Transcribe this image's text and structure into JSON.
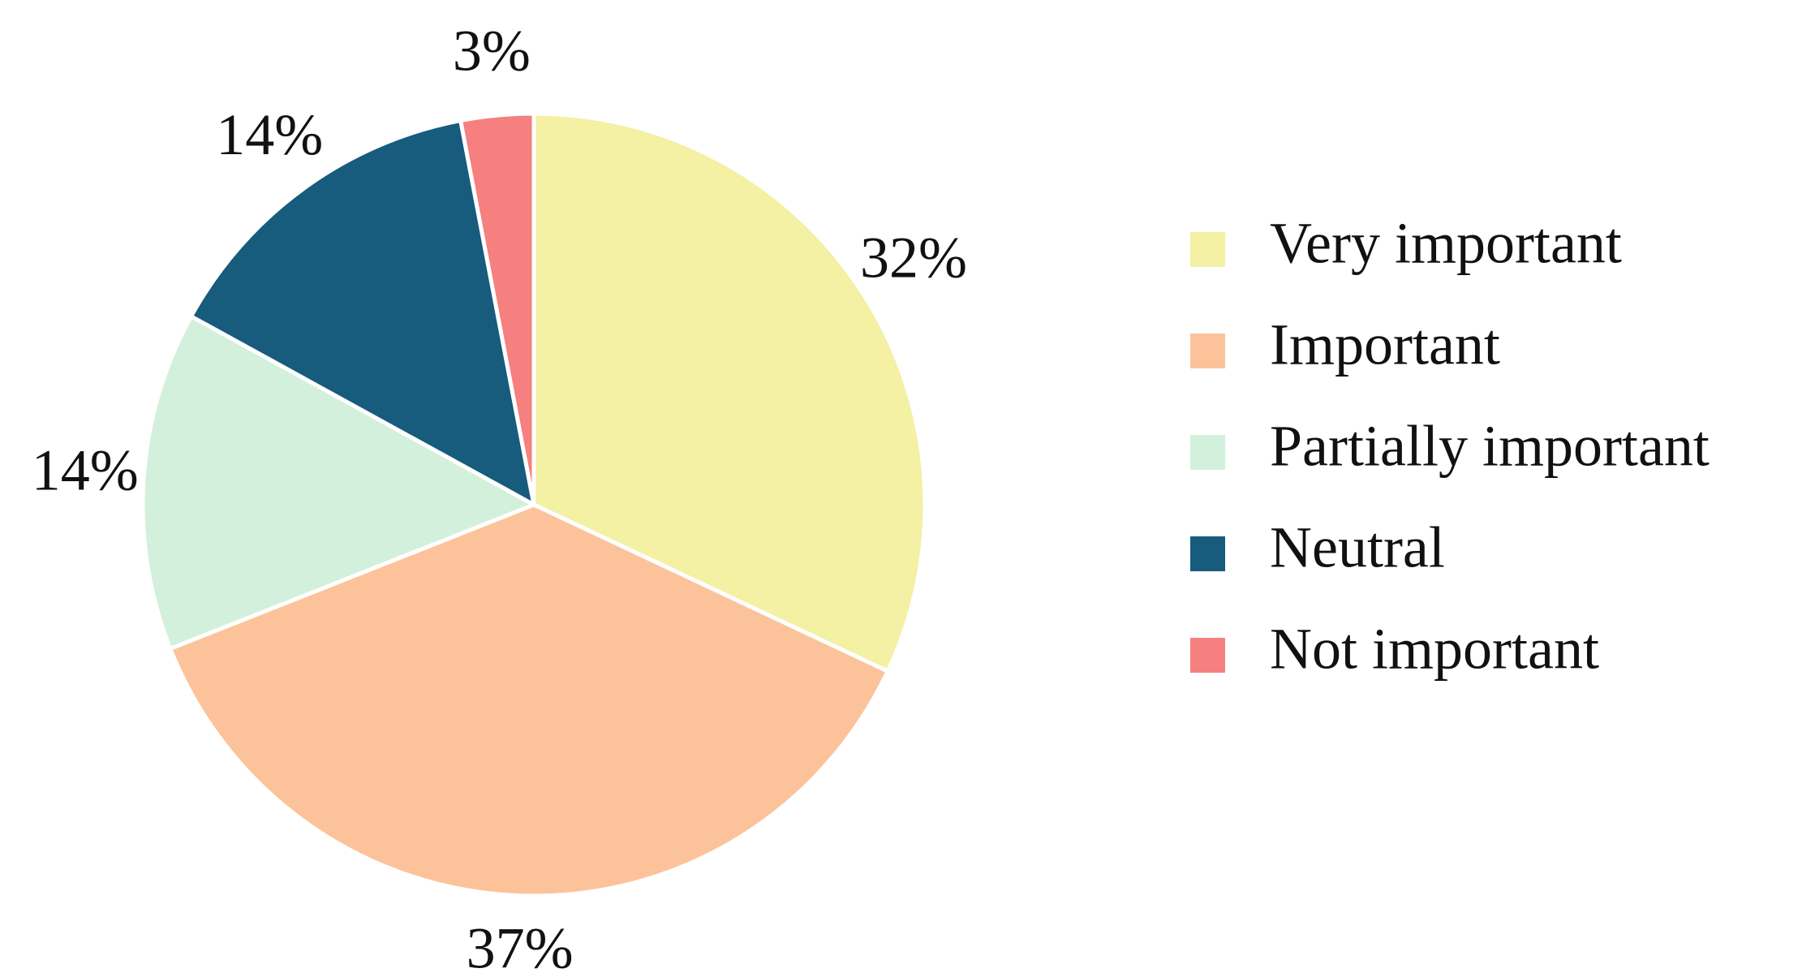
{
  "chart_data": {
    "type": "pie",
    "categories": [
      "Very important",
      "Important",
      "Partially important",
      "Neutral",
      "Not important"
    ],
    "values": [
      32,
      37,
      14,
      14,
      3
    ],
    "value_labels": [
      "32%",
      "37%",
      "14%",
      "14%",
      "3%"
    ],
    "colors": [
      "#f4f0a4",
      "#fcc39a",
      "#d3f0dc",
      "#175b7d",
      "#f67f7f"
    ],
    "legend": "right"
  }
}
